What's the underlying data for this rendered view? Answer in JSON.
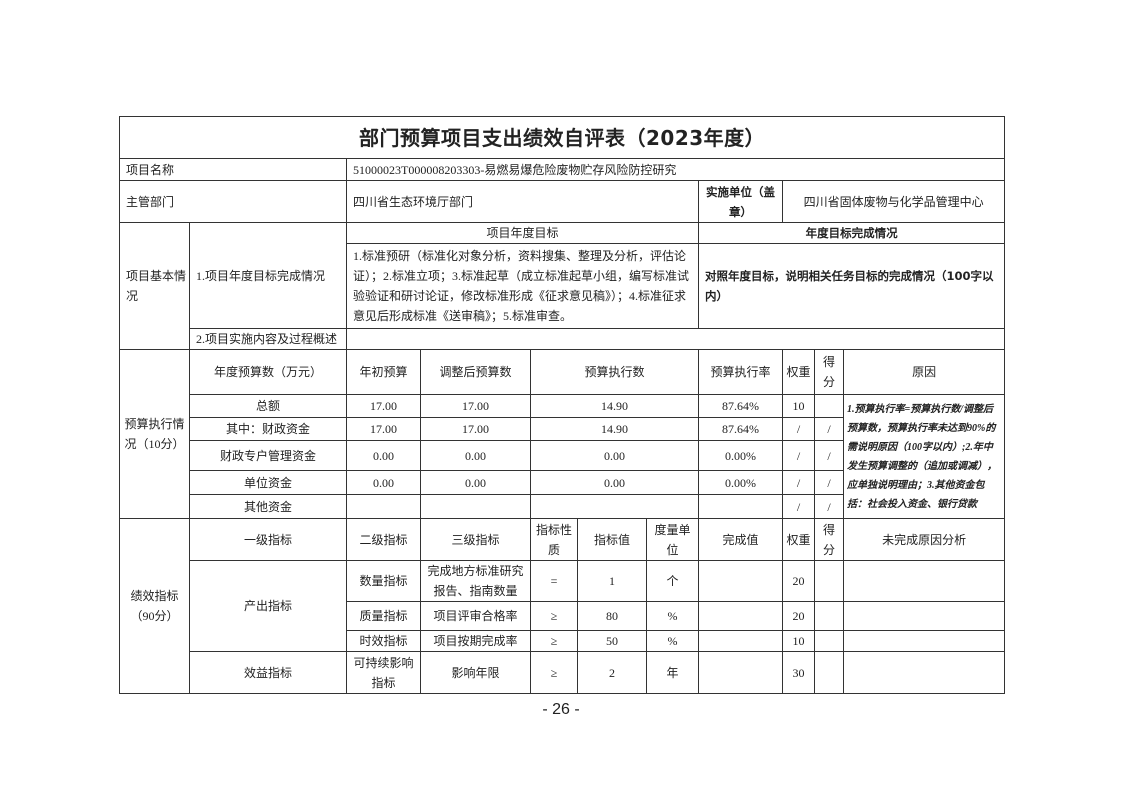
{
  "title": "部门预算项目支出绩效自评表（2023年度）",
  "project_name": {
    "label": "项目名称",
    "value": "51000023T000008203303-易燃易爆危险废物贮存风险防控研究"
  },
  "department": {
    "label": "主管部门",
    "value": "四川省生态环境厅部门",
    "unit_label": "实施单位（盖章）",
    "unit_value": "四川省固体废物与化学品管理中心"
  },
  "basic": {
    "label": "项目基本情况",
    "item1": "1.项目年度目标完成情况",
    "goal_header": "项目年度目标",
    "done_header": "年度目标完成情况",
    "goal_text": "1.标准预研（标准化对象分析，资料搜集、整理及分析，评估论证）；2.标准立项；3.标准起草（成立标准起草小组，编写标准试验验证和研讨论证，修改标准形成《征求意见稿》）；4.标准征求意见后形成标准《送审稿》；5.标准审查。",
    "done_text": "对照年度目标，说明相关任务目标的完成情况（100字以内）",
    "item2": "2.项目实施内容及过程概述"
  },
  "budget": {
    "label": "预算执行情况（10分）",
    "headers": [
      "年度预算数（万元）",
      "年初预算",
      "调整后预算数",
      "预算执行数",
      "预算执行率",
      "权重",
      "得分",
      "原因"
    ],
    "rows": [
      {
        "name": "总额",
        "initial": "17.00",
        "adjusted": "17.00",
        "executed": "14.90",
        "rate": "87.64%",
        "weight": "10",
        "score": ""
      },
      {
        "name": "其中：财政资金",
        "initial": "17.00",
        "adjusted": "17.00",
        "executed": "14.90",
        "rate": "87.64%",
        "weight": "/",
        "score": "/"
      },
      {
        "name": "财政专户管理资金",
        "initial": "0.00",
        "adjusted": "0.00",
        "executed": "0.00",
        "rate": "0.00%",
        "weight": "/",
        "score": "/"
      },
      {
        "name": "单位资金",
        "initial": "0.00",
        "adjusted": "0.00",
        "executed": "0.00",
        "rate": "0.00%",
        "weight": "/",
        "score": "/"
      },
      {
        "name": "其他资金",
        "initial": "",
        "adjusted": "",
        "executed": "",
        "rate": "",
        "weight": "/",
        "score": "/"
      }
    ],
    "note": "1.预算执行率=预算执行数/调整后预算数，预算执行率未达到90%的需说明原因（100字以内）;2.年中发生预算调整的（追加或调减），应单独说明理由；3.其他资金包括：社会投入资金、银行贷款"
  },
  "perf": {
    "label": "绩效指标（90分）",
    "headers": [
      "一级指标",
      "二级指标",
      "三级指标",
      "指标性质",
      "指标值",
      "度量单位",
      "完成值",
      "权重",
      "得分",
      "未完成原因分析"
    ],
    "output_label": "产出指标",
    "benefit_label": "效益指标",
    "rows": [
      {
        "l2": "数量指标",
        "l3": "完成地方标准研究报告、指南数量",
        "nature": "=",
        "value": "1",
        "unit": "个",
        "done": "",
        "weight": "20",
        "score": "",
        "reason": ""
      },
      {
        "l2": "质量指标",
        "l3": "项目评审合格率",
        "nature": "≥",
        "value": "80",
        "unit": "%",
        "done": "",
        "weight": "20",
        "score": "",
        "reason": ""
      },
      {
        "l2": "时效指标",
        "l3": "项目按期完成率",
        "nature": "≥",
        "value": "50",
        "unit": "%",
        "done": "",
        "weight": "10",
        "score": "",
        "reason": ""
      },
      {
        "l2": "可持续影响指标",
        "l3": "影响年限",
        "nature": "≥",
        "value": "2",
        "unit": "年",
        "done": "",
        "weight": "30",
        "score": "",
        "reason": ""
      }
    ]
  },
  "page_number": "- 26 -"
}
